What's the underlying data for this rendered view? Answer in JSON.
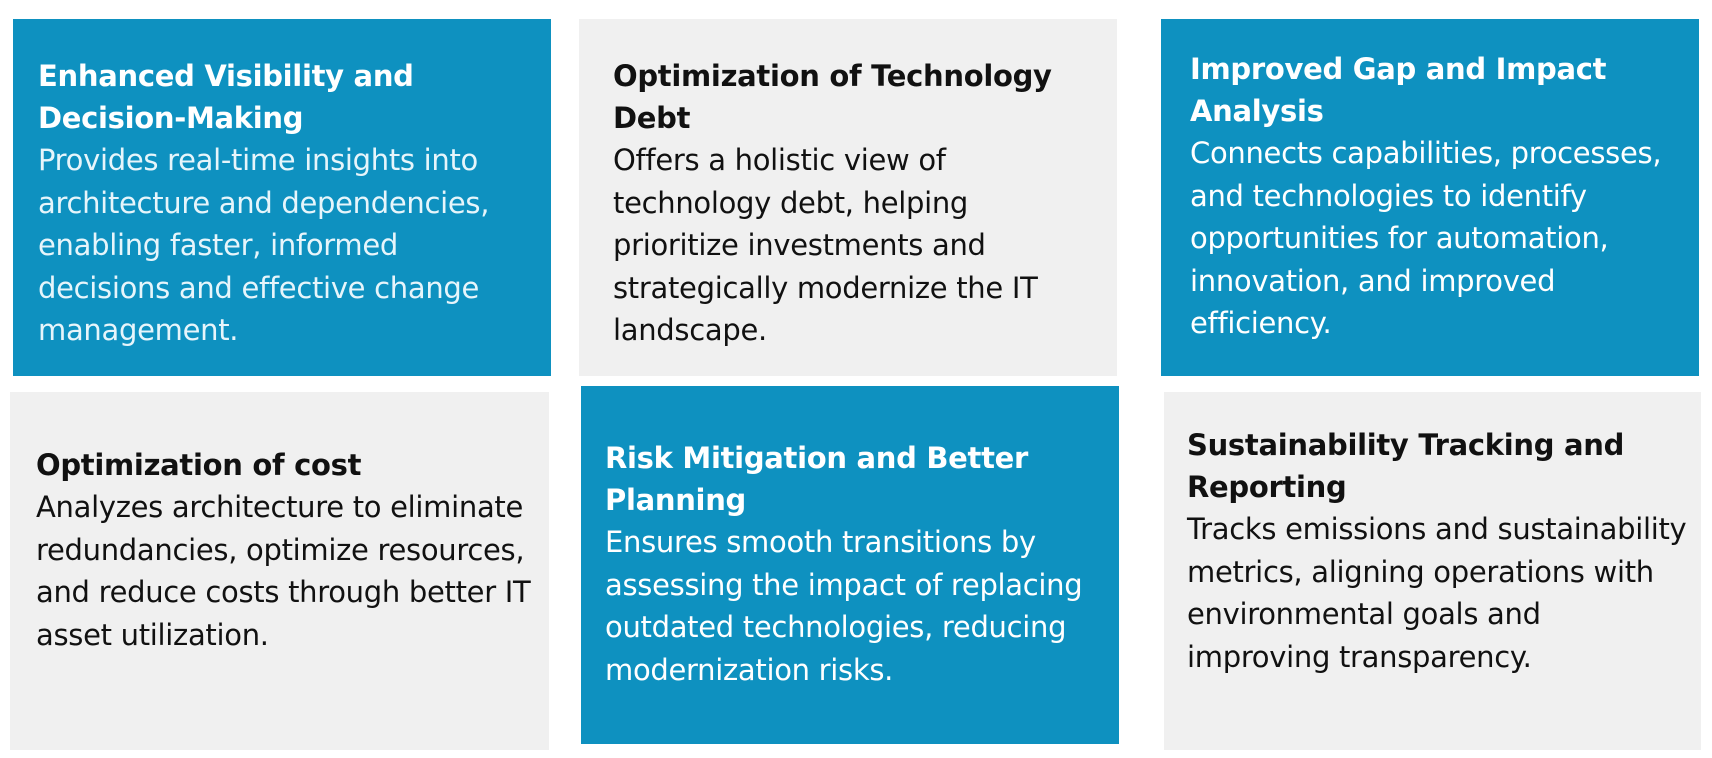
{
  "cards": [
    {
      "title": "Enhanced Visibility and Decision-Making",
      "body": "Provides real-time insights into architecture and dependencies, enabling faster, informed decisions and effective change management."
    },
    {
      "title": "Optimization of Technology Debt",
      "body": "Offers a holistic view of technology debt, helping prioritize investments and strategically modernize the IT landscape."
    },
    {
      "title": "Improved Gap and Impact Analysis",
      "body": "Connects capabilities, processes, and technologies to identify opportunities for automation, innovation, and improved efficiency."
    },
    {
      "title": "Optimization of cost",
      "body": "Analyzes architecture to eliminate redundancies, optimize resources, and reduce costs through better IT asset utilization."
    },
    {
      "title": "Risk Mitigation and Better Planning",
      "body": "Ensures smooth transitions by assessing the impact of replacing outdated technologies, reducing modernization risks."
    },
    {
      "title": "Sustainability Tracking and Reporting",
      "body": "Tracks emissions and sustainability metrics, aligning operations with environmental goals and improving transparency."
    }
  ],
  "colors": {
    "accent_blue": "#0e91c0",
    "card_grey": "#f0f0f0",
    "text_dark": "#111111",
    "text_light": "#ffffff"
  }
}
